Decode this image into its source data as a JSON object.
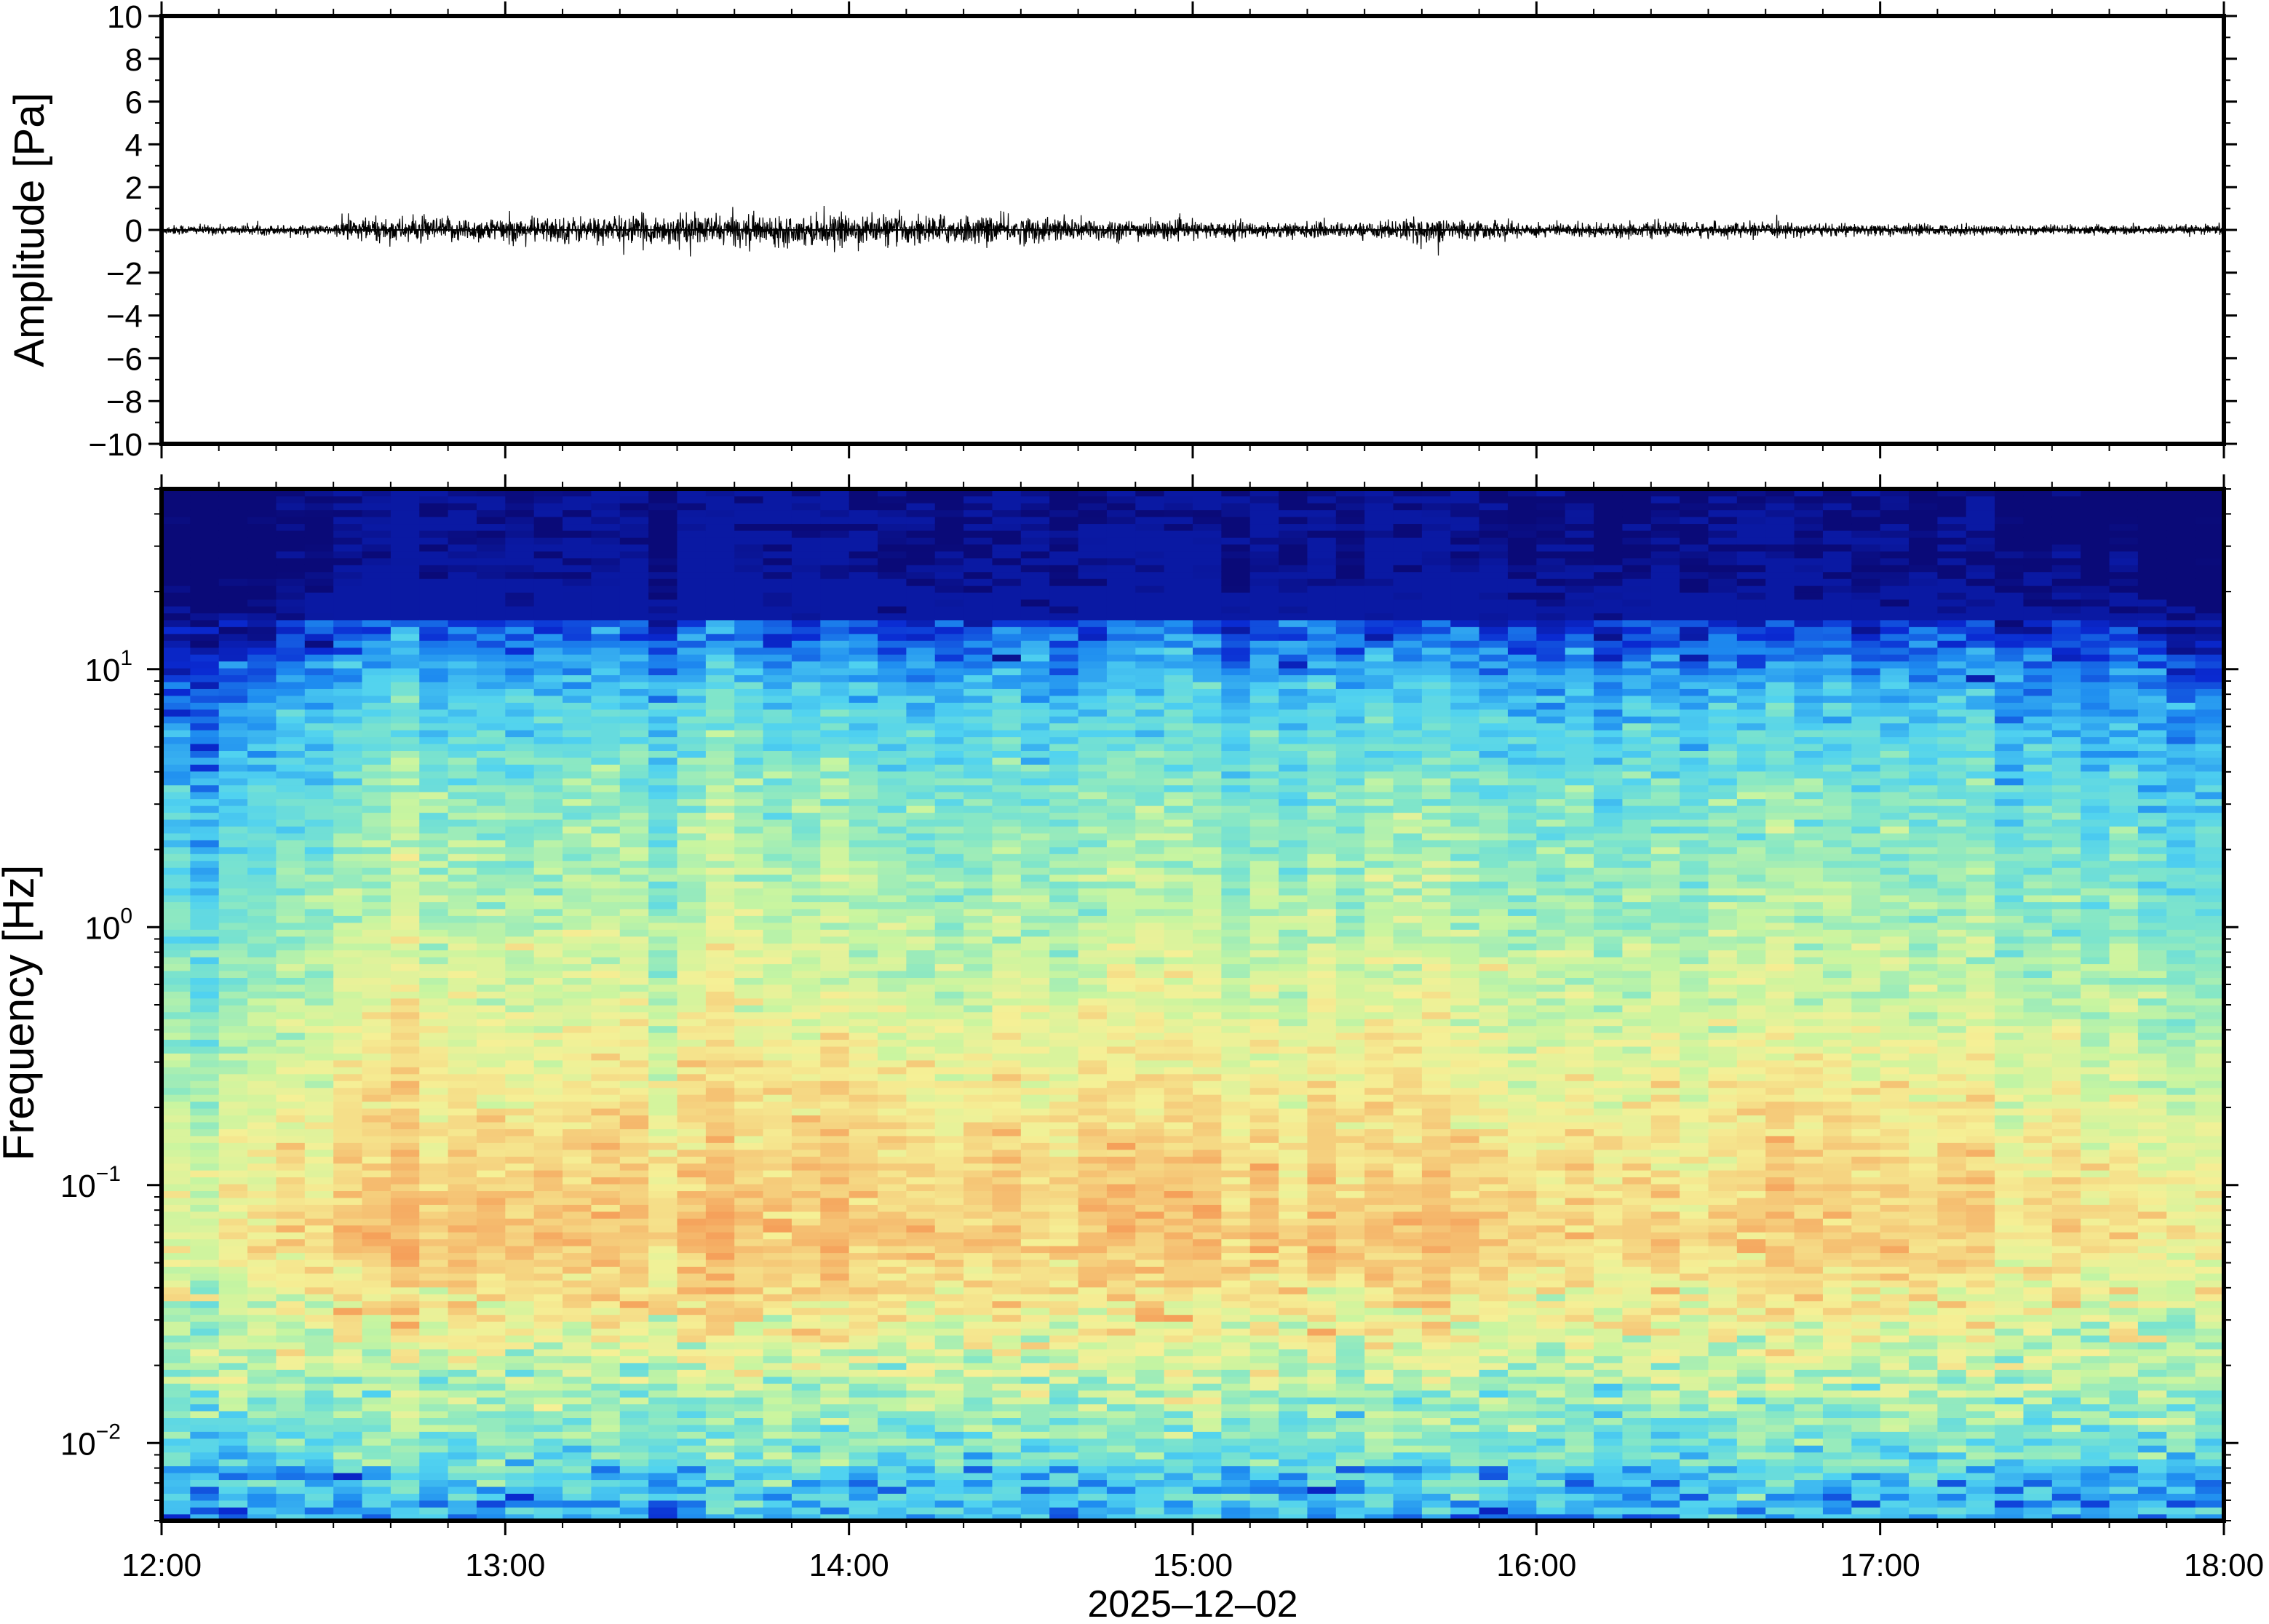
{
  "chart_data": [
    {
      "type": "line",
      "ylabel": "Amplitude [Pa]",
      "ylim": [
        -10,
        10
      ],
      "yticks": [
        10,
        8,
        6,
        4,
        2,
        0,
        -2,
        -4,
        -6,
        -8,
        -10
      ],
      "ytick_labels": [
        "10",
        "8",
        "6",
        "4",
        "2",
        "0",
        "−2",
        "−4",
        "−6",
        "−8",
        "−10"
      ],
      "xlim": [
        "12:00",
        "18:00"
      ],
      "series": [
        {
          "x": [
            "12:00",
            "12:30",
            "12:32",
            "13:00",
            "13:30",
            "14:00",
            "14:20",
            "14:40",
            "15:00",
            "15:30",
            "15:40",
            "16:00",
            "16:30",
            "17:00",
            "17:30",
            "18:00"
          ],
          "y_envelope": [
            0.2,
            0.2,
            0.5,
            0.5,
            0.6,
            0.6,
            0.6,
            0.5,
            0.35,
            0.3,
            0.5,
            0.3,
            0.3,
            0.25,
            0.2,
            0.2
          ]
        }
      ]
    },
    {
      "type": "heatmap",
      "ylabel": "Frequency [Hz]",
      "xlabel": "2025–12–02",
      "yscale": "log",
      "ylim": [
        0.005,
        50
      ],
      "ytick_labels": [
        {
          "base": "10",
          "exp": "1",
          "value": 10
        },
        {
          "base": "10",
          "exp": "0",
          "value": 1
        },
        {
          "base": "10",
          "exp": "−1",
          "value": 0.1
        },
        {
          "base": "10",
          "exp": "−2",
          "value": 0.01
        }
      ],
      "xtick_labels": [
        "12:00",
        "13:00",
        "14:00",
        "15:00",
        "16:00",
        "17:00",
        "18:00"
      ],
      "colormap": [
        "#0a0a78",
        "#0a2ad2",
        "#1e8cf0",
        "#50d2f0",
        "#82e6c8",
        "#c8f5a0",
        "#f5f096",
        "#f5c878",
        "#f5a05a"
      ]
    }
  ]
}
